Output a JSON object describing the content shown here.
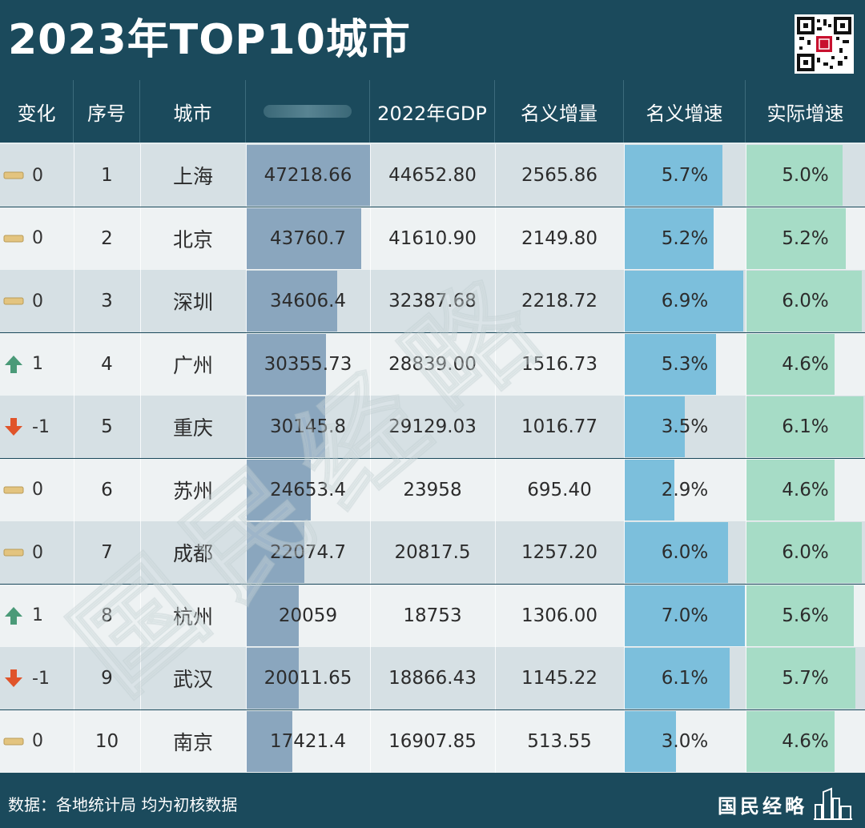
{
  "title": "2023年TOP10城市",
  "columns": {
    "change": "变化",
    "rank": "序号",
    "city": "城市",
    "gdp2023": "",
    "gdp2022": "2022年GDP",
    "nominal_increase": "名义增量",
    "nominal_growth": "名义增速",
    "real_growth": "实际增速"
  },
  "chart_data": {
    "type": "table",
    "rows": [
      {
        "change": "0",
        "trend": "flat",
        "rank": "1",
        "city": "上海",
        "gdp2023": "47218.66",
        "gdp2022": "44652.80",
        "increase": "2565.86",
        "nominal": "5.7%",
        "real": "5.0%",
        "gdp2023_value": 47218.66,
        "nominal_value": 5.7,
        "real_value": 5.0
      },
      {
        "change": "0",
        "trend": "flat",
        "rank": "2",
        "city": "北京",
        "gdp2023": "43760.7",
        "gdp2022": "41610.90",
        "increase": "2149.80",
        "nominal": "5.2%",
        "real": "5.2%",
        "gdp2023_value": 43760.7,
        "nominal_value": 5.2,
        "real_value": 5.2
      },
      {
        "change": "0",
        "trend": "flat",
        "rank": "3",
        "city": "深圳",
        "gdp2023": "34606.4",
        "gdp2022": "32387.68",
        "increase": "2218.72",
        "nominal": "6.9%",
        "real": "6.0%",
        "gdp2023_value": 34606.4,
        "nominal_value": 6.9,
        "real_value": 6.0
      },
      {
        "change": "1",
        "trend": "up",
        "rank": "4",
        "city": "广州",
        "gdp2023": "30355.73",
        "gdp2022": "28839.00",
        "increase": "1516.73",
        "nominal": "5.3%",
        "real": "4.6%",
        "gdp2023_value": 30355.73,
        "nominal_value": 5.3,
        "real_value": 4.6
      },
      {
        "change": "-1",
        "trend": "down",
        "rank": "5",
        "city": "重庆",
        "gdp2023": "30145.8",
        "gdp2022": "29129.03",
        "increase": "1016.77",
        "nominal": "3.5%",
        "real": "6.1%",
        "gdp2023_value": 30145.8,
        "nominal_value": 3.5,
        "real_value": 6.1
      },
      {
        "change": "0",
        "trend": "flat",
        "rank": "6",
        "city": "苏州",
        "gdp2023": "24653.4",
        "gdp2022": "23958",
        "increase": "695.40",
        "nominal": "2.9%",
        "real": "4.6%",
        "gdp2023_value": 24653.4,
        "nominal_value": 2.9,
        "real_value": 4.6
      },
      {
        "change": "0",
        "trend": "flat",
        "rank": "7",
        "city": "成都",
        "gdp2023": "22074.7",
        "gdp2022": "20817.5",
        "increase": "1257.20",
        "nominal": "6.0%",
        "real": "6.0%",
        "gdp2023_value": 22074.7,
        "nominal_value": 6.0,
        "real_value": 6.0
      },
      {
        "change": "1",
        "trend": "up",
        "rank": "8",
        "city": "杭州",
        "gdp2023": "20059",
        "gdp2022": "18753",
        "increase": "1306.00",
        "nominal": "7.0%",
        "real": "5.6%",
        "gdp2023_value": 20059,
        "nominal_value": 7.0,
        "real_value": 5.6
      },
      {
        "change": "-1",
        "trend": "down",
        "rank": "9",
        "city": "武汉",
        "gdp2023": "20011.65",
        "gdp2022": "18866.43",
        "increase": "1145.22",
        "nominal": "6.1%",
        "real": "5.7%",
        "gdp2023_value": 20011.65,
        "nominal_value": 6.1,
        "real_value": 5.7
      },
      {
        "change": "0",
        "trend": "flat",
        "rank": "10",
        "city": "南京",
        "gdp2023": "17421.4",
        "gdp2022": "16907.85",
        "increase": "513.55",
        "nominal": "3.0%",
        "real": "4.6%",
        "gdp2023_value": 17421.4,
        "nominal_value": 3.0,
        "real_value": 4.6
      }
    ]
  },
  "footer": {
    "source": "数据：各地统计局  均为初核数据",
    "brand": "国民经略"
  },
  "watermark": "国民经略",
  "colors": {
    "header_bg": "#1b4a5c",
    "gdp_bar": "#8aa6be",
    "nominal_bar": "#7cbfdc",
    "real_bar": "#a6dcc6",
    "arrow_up": "#4a9a78",
    "arrow_down": "#e0542a",
    "flat_marker": "#e3c47f"
  }
}
